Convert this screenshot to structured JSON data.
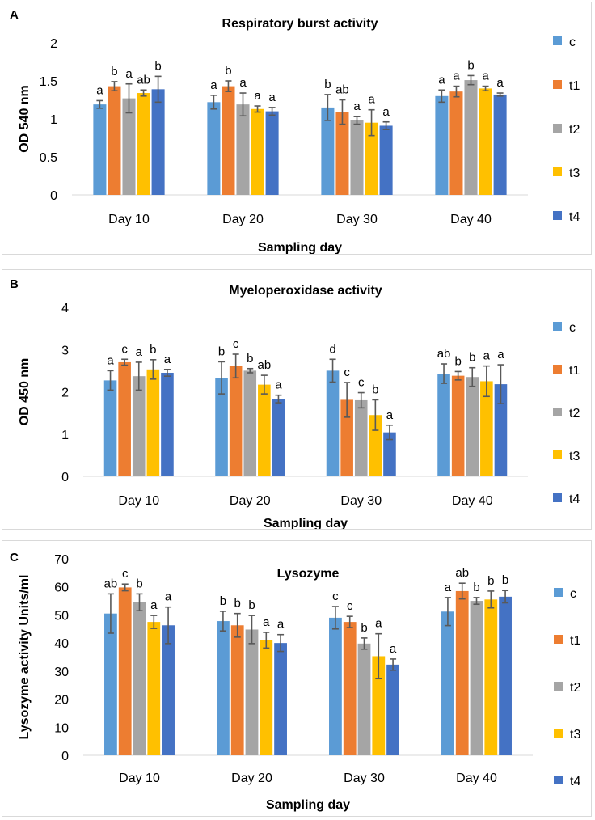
{
  "colors": {
    "c": "#5b9bd5",
    "t1": "#ed7d31",
    "t2": "#a5a5a5",
    "t3": "#ffc000",
    "t4": "#4472c4",
    "error_bar": "#595959",
    "axis": "#d9d9d9"
  },
  "chart_data": [
    {
      "id": "A",
      "type": "bar",
      "panel_label": "A",
      "title": "Respiratory burst activity",
      "xlabel": "Sampling day",
      "ylabel": "OD 540 nm",
      "ylim": [
        0,
        2
      ],
      "yticks": [
        0,
        0.5,
        1,
        1.5,
        2
      ],
      "ytick_labels": [
        "0",
        "0.5",
        "1",
        "1.5",
        "2"
      ],
      "categories": [
        "Day 10",
        "Day 20",
        "Day 30",
        "Day 40"
      ],
      "legend_position": "right",
      "series": [
        {
          "name": "c",
          "values": [
            1.19,
            1.22,
            1.15,
            1.3
          ],
          "errors": [
            0.05,
            0.09,
            0.17,
            0.08
          ],
          "letters": [
            "a",
            "a",
            "b",
            "a"
          ]
        },
        {
          "name": "t1",
          "values": [
            1.43,
            1.43,
            1.09,
            1.36
          ],
          "errors": [
            0.06,
            0.07,
            0.16,
            0.07
          ],
          "letters": [
            "b",
            "b",
            "ab",
            "a"
          ]
        },
        {
          "name": "t2",
          "values": [
            1.27,
            1.19,
            0.98,
            1.51
          ],
          "errors": [
            0.19,
            0.15,
            0.05,
            0.06
          ],
          "letters": [
            "a",
            "a",
            "a",
            "b"
          ]
        },
        {
          "name": "t3",
          "values": [
            1.34,
            1.13,
            0.95,
            1.4
          ],
          "errors": [
            0.04,
            0.04,
            0.17,
            0.03
          ],
          "letters": [
            "ab",
            "a",
            "a",
            "a"
          ]
        },
        {
          "name": "t4",
          "values": [
            1.39,
            1.1,
            0.91,
            1.32
          ],
          "errors": [
            0.17,
            0.05,
            0.05,
            0.02
          ],
          "letters": [
            "b",
            "a",
            "a",
            "a"
          ]
        }
      ]
    },
    {
      "id": "B",
      "type": "bar",
      "panel_label": "B",
      "title": "Myeloperoxidase activity",
      "xlabel": "Sampling day",
      "ylabel": "OD 450 nm",
      "ylim": [
        0,
        4
      ],
      "yticks": [
        0,
        1,
        2,
        3,
        4
      ],
      "ytick_labels": [
        "0",
        "1",
        "2",
        "3",
        "4"
      ],
      "categories": [
        "Day 10",
        "Day 20",
        "Day 30",
        "Day 40"
      ],
      "legend_position": "right",
      "series": [
        {
          "name": "c",
          "values": [
            2.27,
            2.33,
            2.5,
            2.43
          ],
          "errors": [
            0.23,
            0.38,
            0.27,
            0.23
          ],
          "letters": [
            "a",
            "b",
            "d",
            "ab"
          ]
        },
        {
          "name": "t1",
          "values": [
            2.7,
            2.61,
            1.81,
            2.38
          ],
          "errors": [
            0.07,
            0.28,
            0.41,
            0.1
          ],
          "letters": [
            "c",
            "c",
            "c",
            "b"
          ]
        },
        {
          "name": "t2",
          "values": [
            2.37,
            2.5,
            1.8,
            2.35
          ],
          "errors": [
            0.33,
            0.05,
            0.18,
            0.22
          ],
          "letters": [
            "a",
            "b",
            "c",
            "b"
          ]
        },
        {
          "name": "t3",
          "values": [
            2.53,
            2.17,
            1.45,
            2.25
          ],
          "errors": [
            0.23,
            0.22,
            0.36,
            0.36
          ],
          "letters": [
            "b",
            "ab",
            "b",
            "a"
          ]
        },
        {
          "name": "t4",
          "values": [
            2.45,
            1.83,
            1.04,
            2.18
          ],
          "errors": [
            0.08,
            0.09,
            0.17,
            0.46
          ],
          "letters": [
            "a",
            "a",
            "a",
            "a"
          ]
        }
      ]
    },
    {
      "id": "C",
      "type": "bar",
      "panel_label": "C",
      "title": "Lysozyme",
      "xlabel": "Sampling day",
      "ylabel": "Lysozyme activity Units/ml",
      "ylim": [
        0,
        70
      ],
      "yticks": [
        0,
        10,
        20,
        30,
        40,
        50,
        60,
        70
      ],
      "ytick_labels": [
        "0",
        "10",
        "20",
        "30",
        "40",
        "50",
        "60",
        "70"
      ],
      "categories": [
        "Day 10",
        "Day 20",
        "Day 30",
        "Day 40"
      ],
      "legend_position": "right",
      "series": [
        {
          "name": "c",
          "values": [
            50.5,
            47.8,
            49.0,
            51.2
          ],
          "errors": [
            7.0,
            3.5,
            4.0,
            5.0
          ],
          "letters": [
            "ab",
            "b",
            "c",
            "a"
          ]
        },
        {
          "name": "t1",
          "values": [
            59.8,
            46.3,
            47.5,
            58.5
          ],
          "errors": [
            1.2,
            4.2,
            2.0,
            2.8
          ],
          "letters": [
            "c",
            "b",
            "c",
            "ab"
          ]
        },
        {
          "name": "t2",
          "values": [
            54.5,
            44.8,
            39.8,
            55.0
          ],
          "errors": [
            3.0,
            5.0,
            2.0,
            1.2
          ],
          "letters": [
            "b",
            "b",
            "b",
            "b"
          ]
        },
        {
          "name": "t3",
          "values": [
            47.5,
            41.0,
            35.3,
            55.5
          ],
          "errors": [
            2.3,
            2.8,
            8.0,
            3.0
          ],
          "letters": [
            "a",
            "a",
            "a",
            "b"
          ]
        },
        {
          "name": "t4",
          "values": [
            46.3,
            40.0,
            32.3,
            56.5
          ],
          "errors": [
            6.5,
            3.0,
            2.0,
            2.2
          ],
          "letters": [
            "a",
            "a",
            "a",
            "b"
          ]
        }
      ]
    }
  ]
}
